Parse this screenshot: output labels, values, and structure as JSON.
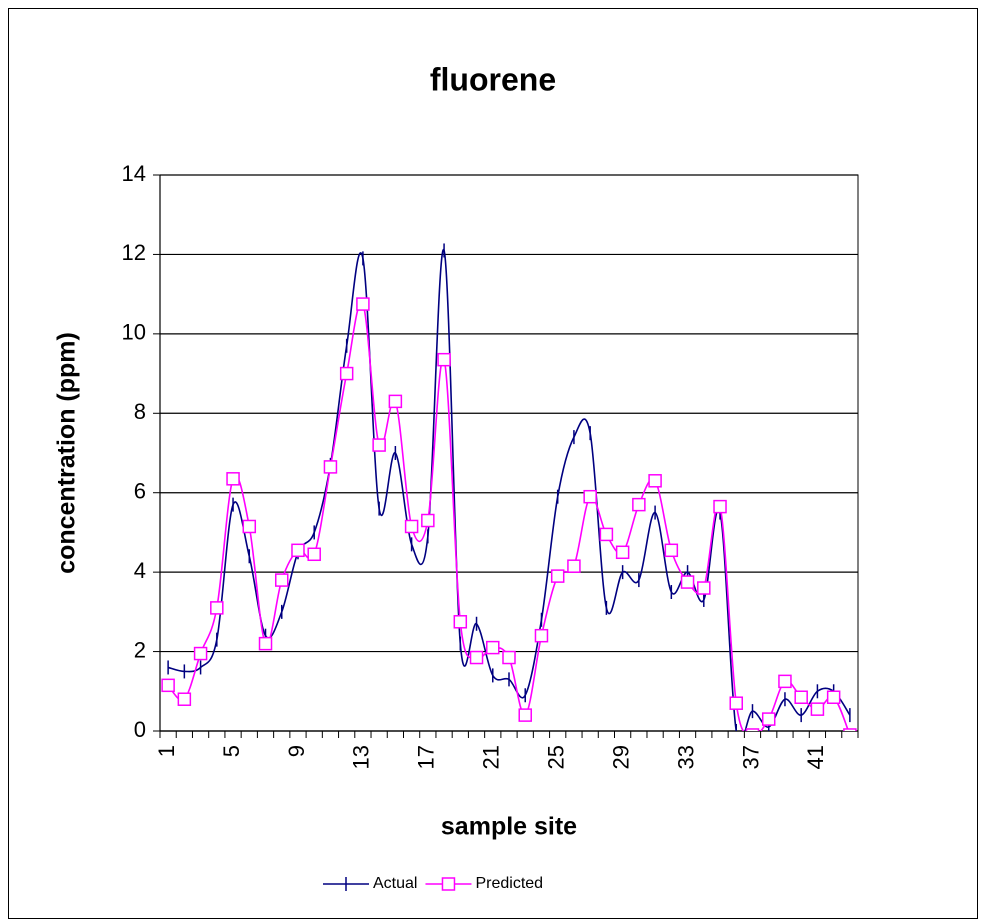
{
  "chart_data": {
    "type": "line",
    "title": "fluorene",
    "x_label": "sample site",
    "y_label": "concentration (ppm)",
    "categories": [
      "1",
      null,
      null,
      null,
      "5",
      null,
      null,
      null,
      "9",
      null,
      null,
      null,
      "13",
      null,
      null,
      null,
      "17",
      null,
      null,
      null,
      "21",
      null,
      null,
      null,
      "25",
      null,
      null,
      null,
      "29",
      null,
      null,
      null,
      "33",
      null,
      null,
      null,
      "37",
      null,
      null,
      null,
      "41",
      null,
      null
    ],
    "series": [
      {
        "name": "Actual",
        "color": "#000080",
        "marker": "dash",
        "values": [
          1.6,
          1.5,
          1.6,
          2.3,
          5.7,
          4.4,
          2.4,
          3.0,
          4.5,
          5.0,
          6.7,
          9.7,
          11.9,
          5.6,
          7.0,
          4.7,
          4.9,
          12.1,
          2.2,
          2.7,
          1.4,
          1.3,
          0.9,
          2.8,
          5.9,
          7.4,
          7.5,
          3.1,
          4.0,
          3.8,
          5.5,
          3.5,
          4.0,
          3.3,
          5.5,
          0,
          0.5,
          0.1,
          0.8,
          0.4,
          1.0,
          1.0,
          0.4
        ]
      },
      {
        "name": "Predicted",
        "color": "#ff00ff",
        "marker": "square",
        "values": [
          1.15,
          0.8,
          1.95,
          3.1,
          6.35,
          5.15,
          2.2,
          3.8,
          4.55,
          4.45,
          6.65,
          9.0,
          10.75,
          7.2,
          8.3,
          5.15,
          5.3,
          9.35,
          2.75,
          1.85,
          2.1,
          1.85,
          0.4,
          2.4,
          3.9,
          4.15,
          5.9,
          4.95,
          4.5,
          5.7,
          6.3,
          4.55,
          3.75,
          3.6,
          5.65,
          0.7,
          -0.1,
          0.3,
          1.25,
          0.85,
          0.55,
          0.85,
          -0.1
        ]
      }
    ],
    "ylim": [
      0,
      14
    ],
    "yticks": [
      0,
      2,
      4,
      6,
      8,
      10,
      12,
      14
    ],
    "grid": true,
    "smooth": true,
    "legend": "bottom"
  }
}
